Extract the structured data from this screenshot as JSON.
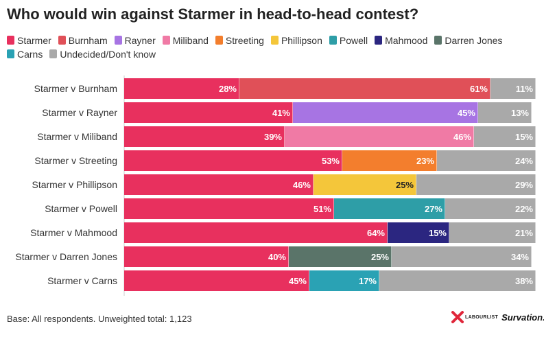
{
  "title": "Who would win against Starmer in head-to-head contest?",
  "legend": [
    {
      "label": "Starmer",
      "color": "#e8305e"
    },
    {
      "label": "Burnham",
      "color": "#e05058"
    },
    {
      "label": "Rayner",
      "color": "#a774e3"
    },
    {
      "label": "Miliband",
      "color": "#f07aa5"
    },
    {
      "label": "Streeting",
      "color": "#f37e2d"
    },
    {
      "label": "Phillipson",
      "color": "#f4c63a"
    },
    {
      "label": "Powell",
      "color": "#2e9ea7"
    },
    {
      "label": "Mahmood",
      "color": "#2b2680"
    },
    {
      "label": "Darren Jones",
      "color": "#5a7469"
    },
    {
      "label": "Carns",
      "color": "#2aa2b4"
    },
    {
      "label": "Undecided/Don't know",
      "color": "#a9a9a9"
    }
  ],
  "chart_data": {
    "type": "bar",
    "orientation": "horizontal",
    "stacked": true,
    "categories": [
      "Starmer v Burnham",
      "Starmer v Rayner",
      "Starmer v Miliband",
      "Starmer v Streeting",
      "Starmer v Phillipson",
      "Starmer v Powell",
      "Starmer v Mahmood",
      "Starmer v Darren Jones",
      "Starmer v Carns"
    ],
    "rows": [
      {
        "starmer": 28,
        "challenger": "Burnham",
        "challenger_value": 61,
        "undecided": 11
      },
      {
        "starmer": 41,
        "challenger": "Rayner",
        "challenger_value": 45,
        "undecided": 13
      },
      {
        "starmer": 39,
        "challenger": "Miliband",
        "challenger_value": 46,
        "undecided": 15
      },
      {
        "starmer": 53,
        "challenger": "Streeting",
        "challenger_value": 23,
        "undecided": 24
      },
      {
        "starmer": 46,
        "challenger": "Phillipson",
        "challenger_value": 25,
        "undecided": 29
      },
      {
        "starmer": 51,
        "challenger": "Powell",
        "challenger_value": 27,
        "undecided": 22
      },
      {
        "starmer": 64,
        "challenger": "Mahmood",
        "challenger_value": 15,
        "undecided": 21
      },
      {
        "starmer": 40,
        "challenger": "Darren Jones",
        "challenger_value": 25,
        "undecided": 34
      },
      {
        "starmer": 45,
        "challenger": "Carns",
        "challenger_value": 17,
        "undecided": 38
      }
    ],
    "value_suffix": "%",
    "dark_label_segments": [
      "Phillipson"
    ],
    "xlim": [
      0,
      100
    ],
    "grid": false,
    "legend_position": "top-left"
  },
  "base_note": "Base: All respondents. Unweighted total: 1,123",
  "brand": {
    "labourlist": "LABOURLIST",
    "survation": "Survation."
  }
}
